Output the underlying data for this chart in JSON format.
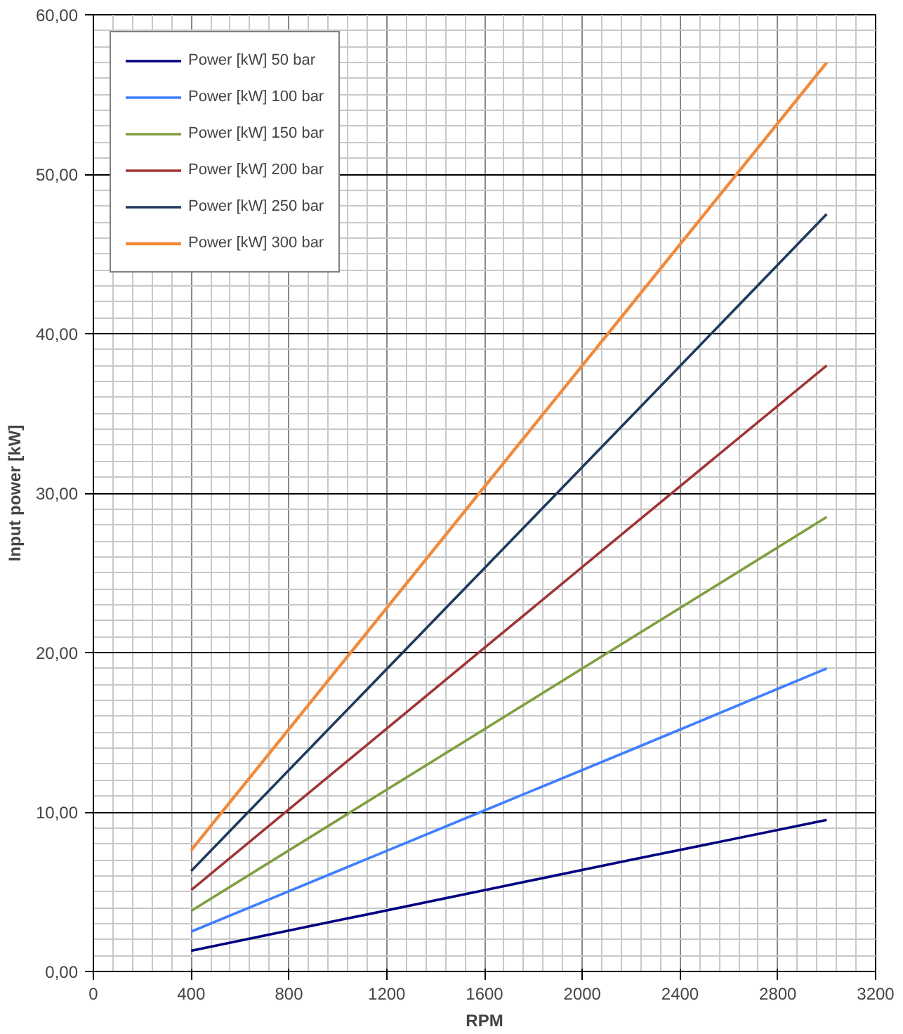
{
  "chart_data": {
    "type": "line",
    "xlabel": "RPM",
    "ylabel": "Input power [kW]",
    "x": [
      400,
      1000,
      1600,
      2200,
      3000
    ],
    "series": [
      {
        "name": "Power [kW] 50 bar",
        "color": "#000080",
        "values": [
          1.3,
          3.2,
          5.1,
          7.0,
          9.5
        ]
      },
      {
        "name": "Power [kW] 100 bar",
        "color": "#3f7fff",
        "values": [
          2.5,
          6.3,
          10.1,
          13.9,
          19.0
        ]
      },
      {
        "name": "Power [kW] 150 bar",
        "color": "#7f9f3f",
        "values": [
          3.8,
          9.5,
          15.2,
          20.9,
          28.5
        ]
      },
      {
        "name": "Power [kW] 200 bar",
        "color": "#a03535",
        "values": [
          5.1,
          12.7,
          20.3,
          27.9,
          38.0
        ]
      },
      {
        "name": "Power [kW] 250 bar",
        "color": "#1f3a5f",
        "values": [
          6.3,
          15.8,
          25.3,
          34.8,
          47.5
        ]
      },
      {
        "name": "Power [kW] 300 bar",
        "color": "#f08a3c",
        "values": [
          7.6,
          19.0,
          30.4,
          41.8,
          57.0
        ]
      }
    ],
    "xlim": [
      0,
      3200
    ],
    "xticks": [
      0,
      400,
      800,
      1200,
      1600,
      2000,
      2400,
      2800,
      3200
    ],
    "ylim": [
      0,
      60
    ],
    "yticks": [
      {
        "value": 0,
        "label": "0,00"
      },
      {
        "value": 10,
        "label": "10,00"
      },
      {
        "value": 20,
        "label": "20,00"
      },
      {
        "value": 30,
        "label": "30,00"
      },
      {
        "value": 40,
        "label": "40,00"
      },
      {
        "value": 50,
        "label": "50,00"
      },
      {
        "value": 60,
        "label": "60,00"
      }
    ],
    "grid": true,
    "legend": "top left",
    "marker": "none",
    "line_style": "solid"
  }
}
